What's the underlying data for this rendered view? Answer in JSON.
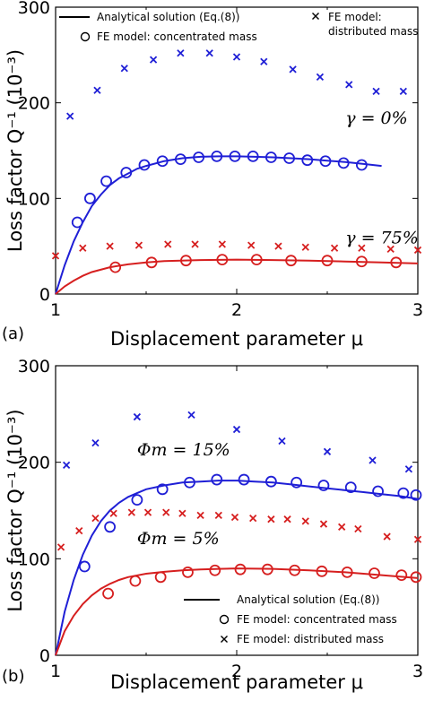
{
  "chart_data": [
    {
      "type": "line",
      "panel_label": "(a)",
      "xlabel": "Displacement parameter   μ",
      "ylabel": "Loss factor  Q⁻¹  (10⁻³)",
      "xlim": [
        1,
        3
      ],
      "ylim": [
        0,
        300
      ],
      "xticks": [
        "1",
        "2",
        "3"
      ],
      "yticks": [
        "0",
        "100",
        "200",
        "300"
      ],
      "grid": false,
      "legend": {
        "placement": "top",
        "entries": [
          {
            "marker": "line",
            "label": "Analytical solution (Eq.(8))"
          },
          {
            "marker": "circle",
            "label": "FE model: concentrated mass"
          },
          {
            "marker": "x",
            "label": "FE model:\ndistributed mass"
          }
        ]
      },
      "annotations": [
        {
          "text": "γ = 0%",
          "x": 2.6,
          "y": 178
        },
        {
          "text": "γ = 75%",
          "x": 2.6,
          "y": 53
        }
      ],
      "series": [
        {
          "label": "γ = 0%",
          "color": "#1f1fd6",
          "curve_x": [
            1.0,
            1.05,
            1.1,
            1.15,
            1.2,
            1.25,
            1.3,
            1.35,
            1.4,
            1.45,
            1.5,
            1.6,
            1.7,
            1.8,
            1.9,
            2.0,
            2.1,
            2.2,
            2.3,
            2.4,
            2.5,
            2.6,
            2.7,
            2.8
          ],
          "curve_y": [
            0,
            30,
            55,
            75,
            92,
            104,
            114,
            121,
            126,
            131,
            134,
            139,
            142,
            143.5,
            144,
            144,
            143.5,
            143,
            142,
            141,
            139.5,
            138,
            136,
            134
          ],
          "circles_x": [
            1.12,
            1.19,
            1.28,
            1.39,
            1.49,
            1.59,
            1.69,
            1.79,
            1.89,
            1.99,
            2.09,
            2.19,
            2.29,
            2.39,
            2.49,
            2.59,
            2.69
          ],
          "circles_y": [
            75,
            100,
            118,
            127,
            135,
            139,
            141,
            143,
            144,
            144,
            144,
            143,
            142,
            140,
            139,
            137,
            135
          ],
          "crosses_x": [
            1.08,
            1.23,
            1.38,
            1.54,
            1.69,
            1.85,
            2.0,
            2.15,
            2.31,
            2.46,
            2.62,
            2.77,
            2.92
          ],
          "crosses_y": [
            186,
            213,
            236,
            245,
            252,
            252,
            248,
            243,
            235,
            227,
            219,
            212,
            212
          ]
        },
        {
          "label": "γ = 75%",
          "color": "#d61f1f",
          "curve_x": [
            1.0,
            1.05,
            1.1,
            1.15,
            1.2,
            1.3,
            1.4,
            1.5,
            1.6,
            1.8,
            2.0,
            2.2,
            2.4,
            2.6,
            2.8,
            3.0
          ],
          "curve_y": [
            0,
            8,
            14,
            19,
            23,
            28,
            31,
            33,
            34.5,
            35.5,
            36,
            35.5,
            35,
            34,
            33,
            32
          ],
          "circles_x": [
            1.33,
            1.53,
            1.72,
            1.92,
            2.11,
            2.3,
            2.5,
            2.69,
            2.88
          ],
          "circles_y": [
            28,
            33,
            35,
            36,
            36,
            35,
            35,
            34,
            33
          ],
          "crosses_x": [
            1.0,
            1.15,
            1.3,
            1.46,
            1.62,
            1.77,
            1.92,
            2.08,
            2.23,
            2.38,
            2.54,
            2.69,
            2.85,
            3.0
          ],
          "crosses_y": [
            40,
            48,
            50,
            51,
            52,
            52,
            52,
            51,
            50,
            49,
            48,
            48,
            47,
            46
          ]
        }
      ]
    },
    {
      "type": "line",
      "panel_label": "(b)",
      "xlabel": "Displacement parameter   μ",
      "ylabel": "Loss factor  Q⁻¹  (10⁻³)",
      "xlim": [
        1,
        3
      ],
      "ylim": [
        0,
        300
      ],
      "xticks": [
        "1",
        "2",
        "3"
      ],
      "yticks": [
        "0",
        "100",
        "200",
        "300"
      ],
      "grid": false,
      "legend": {
        "placement": "bottom-right",
        "entries": [
          {
            "marker": "line",
            "label": "Analytical solution (Eq.(8))"
          },
          {
            "marker": "circle",
            "label": "FE model: concentrated mass"
          },
          {
            "marker": "x",
            "label": "FE model: distributed mass"
          }
        ]
      },
      "annotations": [
        {
          "text": "Φm = 15%",
          "x": 1.45,
          "y": 207
        },
        {
          "text": "Φm = 5%",
          "x": 1.45,
          "y": 115
        }
      ],
      "series": [
        {
          "label": "Φm = 15%",
          "color": "#1f1fd6",
          "curve_x": [
            1.0,
            1.05,
            1.1,
            1.15,
            1.2,
            1.25,
            1.3,
            1.35,
            1.4,
            1.45,
            1.5,
            1.6,
            1.7,
            1.8,
            1.9,
            2.0,
            2.1,
            2.2,
            2.3,
            2.4,
            2.5,
            2.6,
            2.7,
            2.8,
            2.9,
            3.0
          ],
          "curve_y": [
            0,
            45,
            78,
            104,
            124,
            139,
            150,
            158,
            164,
            168,
            172,
            176,
            179,
            180,
            181,
            181,
            180,
            179,
            177,
            175,
            173,
            171,
            169,
            167,
            165,
            162
          ],
          "circles_x": [
            1.16,
            1.3,
            1.45,
            1.59,
            1.74,
            1.89,
            2.04,
            2.19,
            2.33,
            2.48,
            2.63,
            2.78,
            2.92,
            2.99
          ],
          "circles_y": [
            92,
            133,
            161,
            172,
            179,
            182,
            182,
            180,
            179,
            176,
            174,
            170,
            168,
            166
          ],
          "crosses_x": [
            1.06,
            1.22,
            1.45,
            1.75,
            2.0,
            2.25,
            2.5,
            2.75,
            2.95
          ],
          "crosses_y": [
            197,
            220,
            247,
            249,
            234,
            222,
            211,
            202,
            193
          ]
        },
        {
          "label": "Φm = 5%",
          "color": "#d61f1f",
          "curve_x": [
            1.0,
            1.05,
            1.1,
            1.15,
            1.2,
            1.25,
            1.3,
            1.35,
            1.4,
            1.5,
            1.6,
            1.7,
            1.8,
            1.9,
            2.0,
            2.2,
            2.4,
            2.6,
            2.8,
            3.0
          ],
          "curve_y": [
            0,
            25,
            41,
            53,
            62,
            69,
            74,
            78,
            81,
            84.5,
            86.5,
            88,
            89,
            89.5,
            90,
            89.5,
            88,
            86,
            83,
            80
          ],
          "circles_x": [
            1.29,
            1.44,
            1.58,
            1.73,
            1.88,
            2.02,
            2.17,
            2.32,
            2.47,
            2.61,
            2.76,
            2.91,
            2.99
          ],
          "circles_y": [
            64,
            77,
            81,
            86,
            88,
            89,
            89,
            88,
            87,
            86,
            85,
            83,
            81
          ],
          "crosses_x": [
            1.03,
            1.13,
            1.22,
            1.32,
            1.42,
            1.51,
            1.61,
            1.7,
            1.8,
            1.9,
            1.99,
            2.09,
            2.19,
            2.28,
            2.38,
            2.48,
            2.58,
            2.67,
            2.83,
            3.0
          ],
          "crosses_y": [
            112,
            129,
            142,
            147,
            148,
            148,
            148,
            147,
            145,
            145,
            143,
            142,
            141,
            141,
            139,
            136,
            133,
            131,
            123,
            120
          ]
        }
      ]
    }
  ]
}
